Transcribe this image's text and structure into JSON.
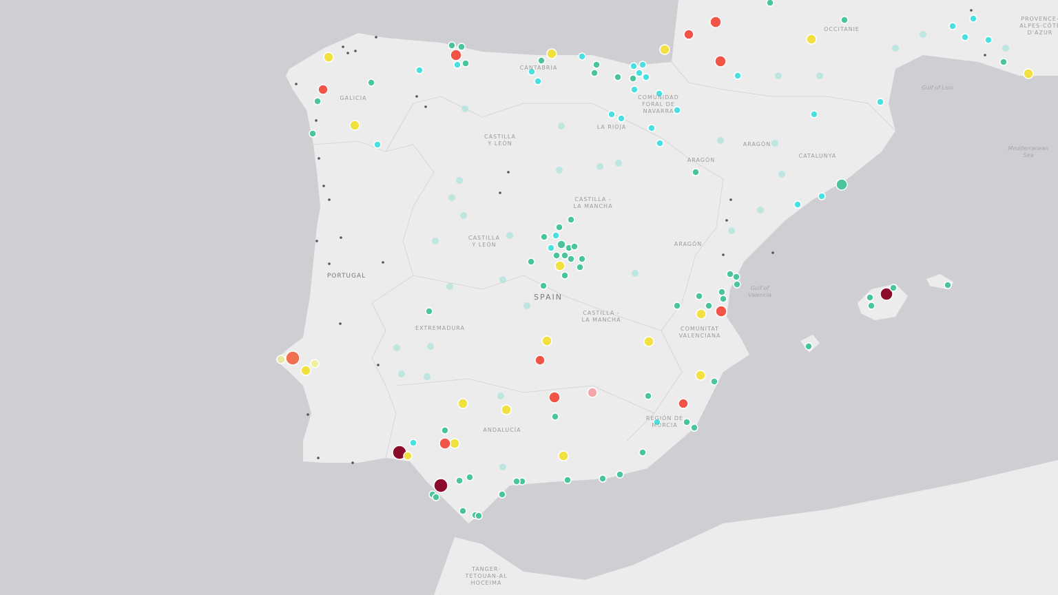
{
  "map": {
    "labels": [
      {
        "lines": [
          "GALICIA"
        ]
      },
      {
        "lines": [
          "CANTABRIA"
        ]
      },
      {
        "lines": [
          "CASTILLA",
          "Y LEÓN"
        ]
      },
      {
        "lines": [
          "COMUNIDAD",
          "FORAL DE",
          "NAVARRA"
        ]
      },
      {
        "lines": [
          "LA RIOJA"
        ]
      },
      {
        "lines": [
          "ARAGÓN"
        ]
      },
      {
        "lines": [
          "ARAGÓN"
        ]
      },
      {
        "lines": [
          "ARAGÓN"
        ]
      },
      {
        "lines": [
          "CATALUNYA"
        ]
      },
      {
        "lines": [
          "OCCITANIE"
        ]
      },
      {
        "lines": [
          "PROVENCE-",
          "ALPES-CÔTE",
          "D'AZUR"
        ]
      },
      {
        "lines": [
          "Gulf of Lion"
        ]
      },
      {
        "lines": [
          "Mediterranean",
          "Sea"
        ]
      },
      {
        "lines": [
          "CASTILLA -",
          "LA MANCHA"
        ]
      },
      {
        "lines": [
          "CASTILLA",
          "Y LEÓN"
        ]
      },
      {
        "lines": [
          "PORTUGAL"
        ]
      },
      {
        "lines": [
          "SPAIN"
        ]
      },
      {
        "lines": [
          "CASTILLA -",
          "LA MANCHA"
        ]
      },
      {
        "lines": [
          "EXTREMADURA"
        ]
      },
      {
        "lines": [
          "Gulf of",
          "Valencia"
        ]
      },
      {
        "lines": [
          "COMUNITAT",
          "VALENCIANA"
        ]
      },
      {
        "lines": [
          "REGIÓN DE",
          "MURCIA"
        ]
      },
      {
        "lines": [
          "ANDALUCÍA"
        ]
      },
      {
        "lines": [
          "TANGER-",
          "TETOUAN-AL",
          "HOCEIMA"
        ]
      }
    ]
  }
}
